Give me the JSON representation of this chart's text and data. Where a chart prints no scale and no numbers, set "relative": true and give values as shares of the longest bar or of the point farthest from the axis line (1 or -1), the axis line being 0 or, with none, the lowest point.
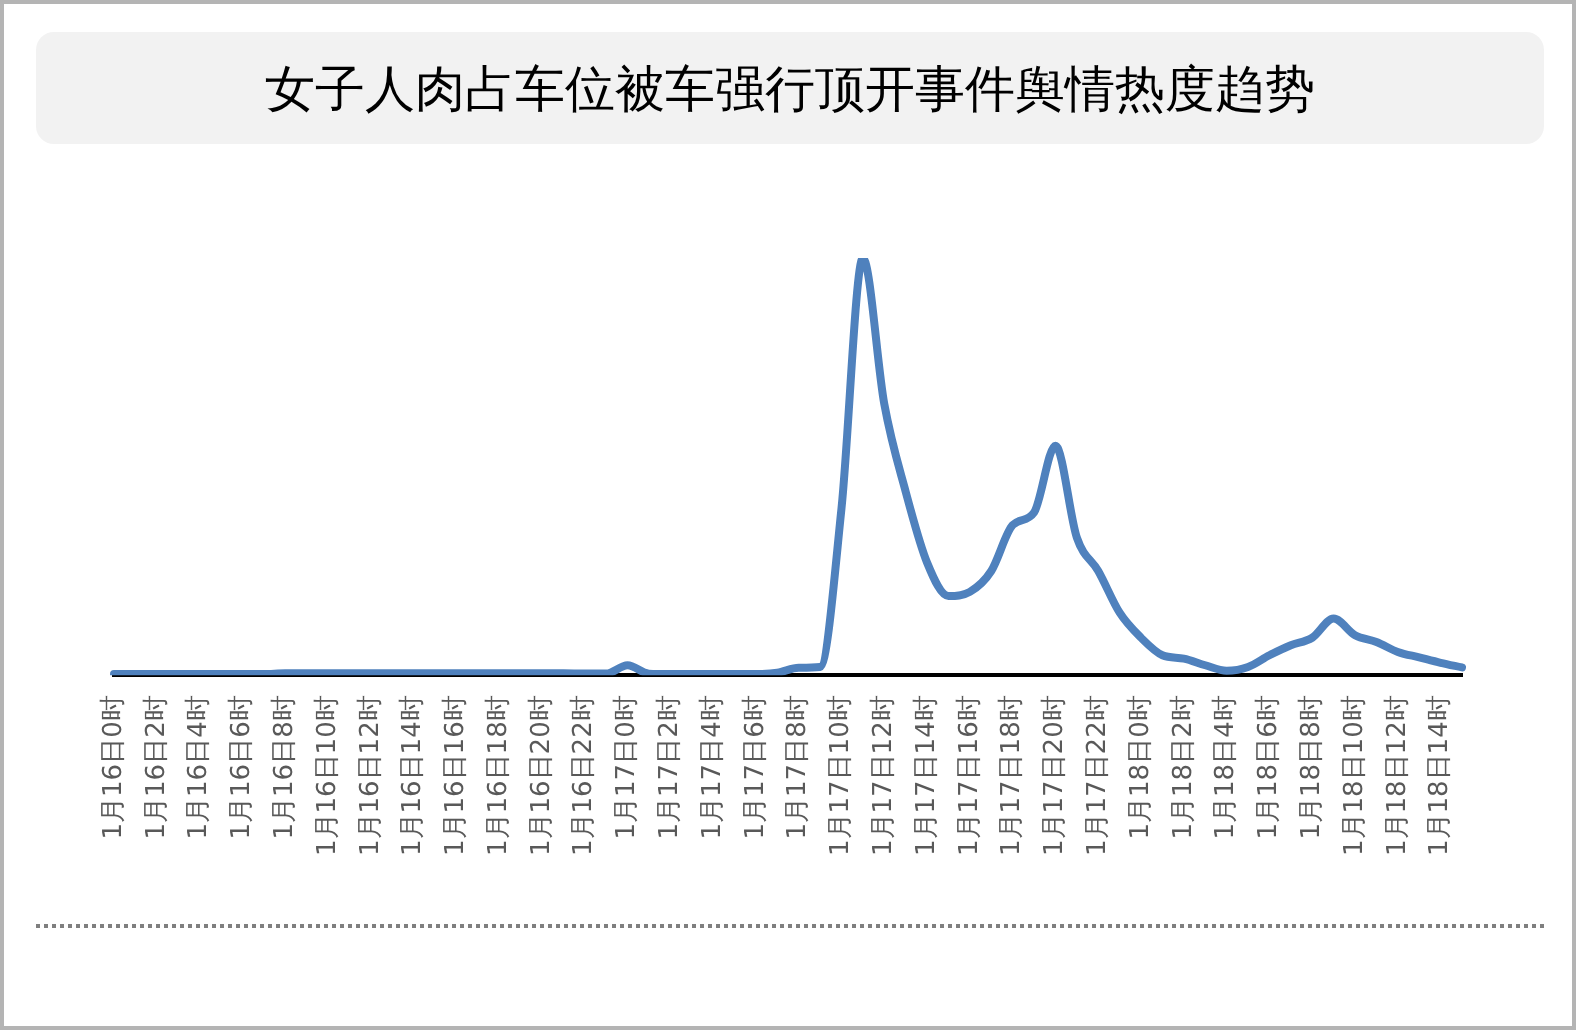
{
  "chart_data": {
    "type": "line",
    "title": "女子人肉占车位被车强行顶开事件舆情热度趋势",
    "relative": true,
    "color": "#4f81bd",
    "categories": [
      "1月16日0时",
      null,
      "1月16日2时",
      null,
      "1月16日4时",
      null,
      "1月16日6时",
      null,
      "1月16日8时",
      null,
      "1月16日10时",
      null,
      "1月16日12时",
      null,
      "1月16日14时",
      null,
      "1月16日16时",
      null,
      "1月16日18时",
      null,
      "1月16日20时",
      null,
      "1月16日22时",
      null,
      "1月17日0时",
      null,
      "1月17日2时",
      null,
      "1月17日4时",
      null,
      "1月17日6时",
      null,
      "1月17日8时",
      null,
      "1月17日10时",
      null,
      "1月17日12时",
      null,
      "1月17日14时",
      null,
      "1月17日16时",
      null,
      "1月17日18时",
      null,
      "1月17日20时",
      null,
      "1月17日22时",
      null,
      "1月18日0时",
      null,
      "1月18日2时",
      null,
      "1月18日4时",
      null,
      "1月18日6时",
      null,
      "1月18日8时",
      null,
      "1月18日10时",
      null,
      "1月18日12时",
      null,
      "1月18日14时",
      null
    ],
    "values": [
      0.003,
      0.003,
      0.003,
      0.003,
      0.003,
      0.003,
      0.003,
      0.003,
      0.005,
      0.005,
      0.005,
      0.005,
      0.005,
      0.005,
      0.005,
      0.005,
      0.005,
      0.005,
      0.005,
      0.005,
      0.005,
      0.005,
      0.004,
      0.004,
      0.024,
      0.004,
      0.003,
      0.003,
      0.003,
      0.003,
      0.003,
      0.006,
      0.018,
      0.02,
      0.4,
      1,
      0.65,
      0.44,
      0.27,
      0.19,
      0.2,
      0.25,
      0.36,
      0.39,
      0.55,
      0.33,
      0.25,
      0.15,
      0.09,
      0.048,
      0.04,
      0.024,
      0.011,
      0.02,
      0.048,
      0.072,
      0.09,
      0.136,
      0.096,
      0.08,
      0.056,
      0.043,
      0.03,
      0.019
    ]
  }
}
